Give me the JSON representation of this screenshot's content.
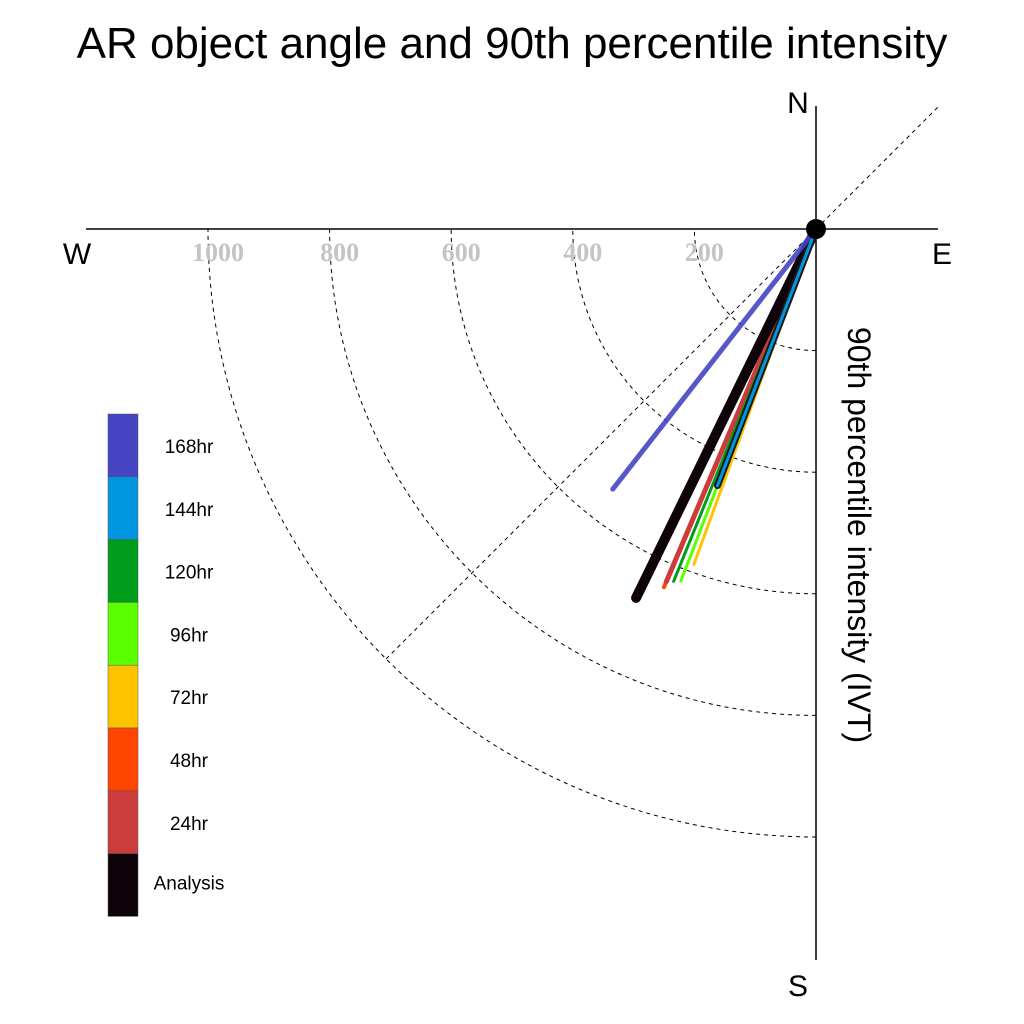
{
  "chart_data": {
    "type": "polar-vector",
    "title": "AR object angle and 90th percentile intensity",
    "ylabel": "90th percentile intensity (IVT)",
    "directions": {
      "north": "N",
      "south": "S",
      "east": "E",
      "west": "W"
    },
    "radial_ticks": [
      200,
      400,
      600,
      800,
      1000
    ],
    "radial_tick_labels": [
      "200",
      "400",
      "600",
      "800",
      "1000"
    ],
    "rlim": [
      0,
      1200
    ],
    "grid": true,
    "legend_position": "left",
    "series": [
      {
        "name": "Analysis",
        "color": "#0d0308",
        "angle_deg": 206,
        "intensity": 675
      },
      {
        "name": "24hr",
        "color": "#cd3c3c",
        "angle_deg": 203,
        "intensity": 630
      },
      {
        "name": "48hr",
        "color": "#ff4500",
        "angle_deg": 203,
        "intensity": 640
      },
      {
        "name": "72hr",
        "color": "#ffc400",
        "angle_deg": 200,
        "intensity": 587
      },
      {
        "name": "96hr",
        "color": "#5aff00",
        "angle_deg": 201,
        "intensity": 620
      },
      {
        "name": "120hr",
        "color": "#009c1c",
        "angle_deg": 202,
        "intensity": 625
      },
      {
        "name": "144hr",
        "color": "#0097e0",
        "angle_deg": 201,
        "intensity": 452
      },
      {
        "name": "168hr",
        "color": "#4545c4",
        "angle_deg": 218,
        "intensity": 543
      }
    ],
    "legend_order": [
      "168hr",
      "144hr",
      "120hr",
      "96hr",
      "72hr",
      "48hr",
      "24hr",
      "Analysis"
    ]
  }
}
